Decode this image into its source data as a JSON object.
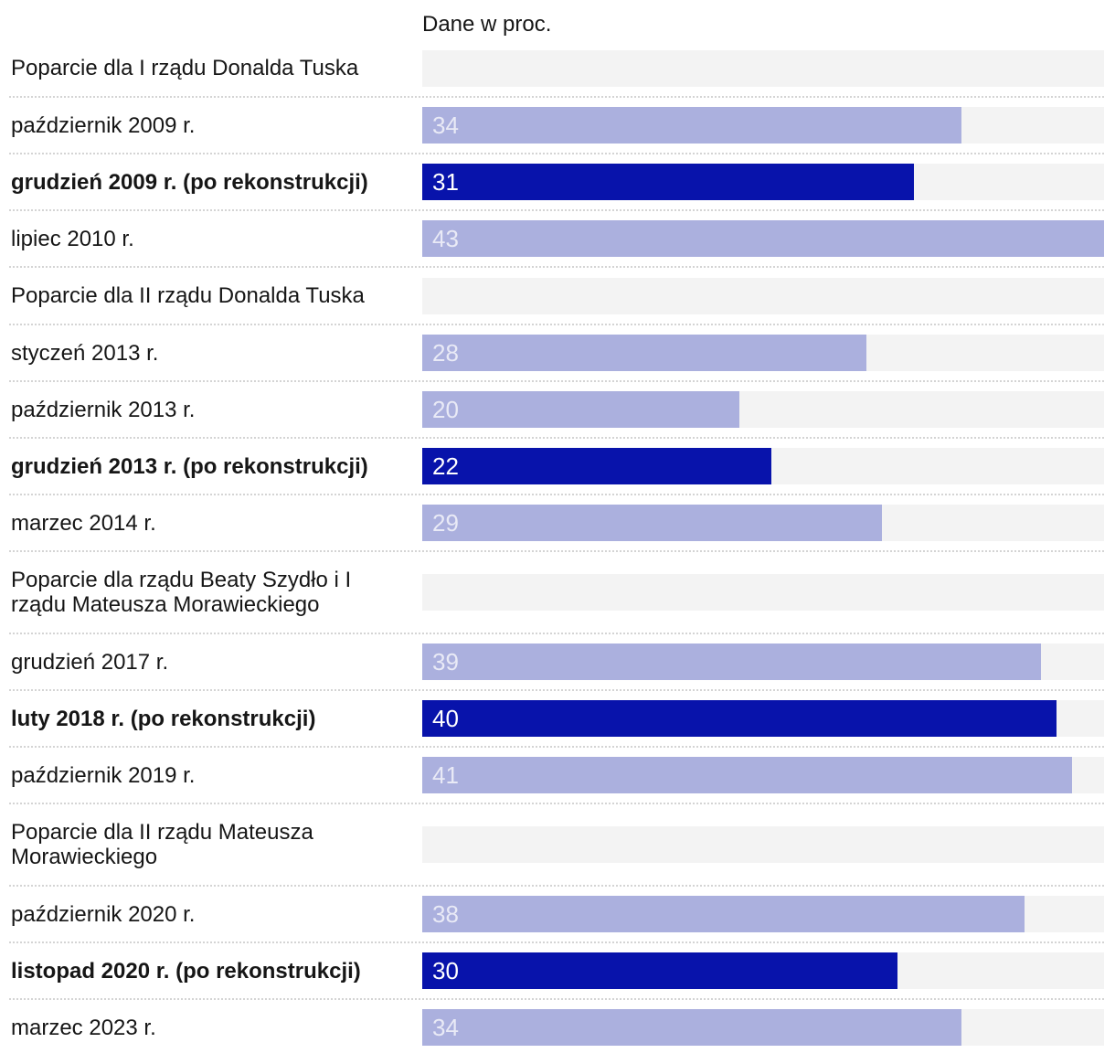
{
  "header": {
    "units_label": "Dane w proc."
  },
  "colors": {
    "bar_light": "#abb0de",
    "bar_dark": "#0813ab",
    "track": "#f3f3f3",
    "separator": "#d4d4d4",
    "label_text": "#161616",
    "value_on_light": "#e9eaf6",
    "value_on_dark": "#ffffff"
  },
  "chart_data": {
    "type": "bar",
    "orientation": "horizontal",
    "title": "Dane w proc.",
    "units": "percent",
    "axis_max": 43,
    "grid": false,
    "legend": false,
    "highlight_meaning": "dark bars = po rekonstrukcji (after reconstruction)",
    "rows": [
      {
        "kind": "section",
        "label": "Poparcie dla I rządu Donalda Tuska"
      },
      {
        "kind": "bar",
        "label": "październik 2009 r.",
        "value": 34,
        "variant": "light",
        "bold": false
      },
      {
        "kind": "bar",
        "label": "grudzień 2009 r. (po rekonstrukcji)",
        "value": 31,
        "variant": "dark",
        "bold": true
      },
      {
        "kind": "bar",
        "label": "lipiec 2010 r.",
        "value": 43,
        "variant": "light",
        "bold": false
      },
      {
        "kind": "section",
        "label": "Poparcie dla II rządu Donalda Tuska"
      },
      {
        "kind": "bar",
        "label": "styczeń 2013 r.",
        "value": 28,
        "variant": "light",
        "bold": false
      },
      {
        "kind": "bar",
        "label": "październik 2013 r.",
        "value": 20,
        "variant": "light",
        "bold": false
      },
      {
        "kind": "bar",
        "label": "grudzień 2013 r. (po rekonstrukcji)",
        "value": 22,
        "variant": "dark",
        "bold": true
      },
      {
        "kind": "bar",
        "label": "marzec 2014 r.",
        "value": 29,
        "variant": "light",
        "bold": false
      },
      {
        "kind": "section",
        "label": "Poparcie dla rządu Beaty Szydło i I rządu Mateusza Morawieckiego"
      },
      {
        "kind": "bar",
        "label": "grudzień 2017 r.",
        "value": 39,
        "variant": "light",
        "bold": false
      },
      {
        "kind": "bar",
        "label": "luty 2018 r. (po rekonstrukcji)",
        "value": 40,
        "variant": "dark",
        "bold": true
      },
      {
        "kind": "bar",
        "label": "październik 2019 r.",
        "value": 41,
        "variant": "light",
        "bold": false
      },
      {
        "kind": "section",
        "label": "Poparcie dla II rządu Mateusza Morawieckiego"
      },
      {
        "kind": "bar",
        "label": "październik 2020 r.",
        "value": 38,
        "variant": "light",
        "bold": false
      },
      {
        "kind": "bar",
        "label": "listopad 2020 r. (po rekonstrukcji)",
        "value": 30,
        "variant": "dark",
        "bold": true
      },
      {
        "kind": "bar",
        "label": "marzec 2023 r.",
        "value": 34,
        "variant": "light",
        "bold": false
      }
    ]
  }
}
